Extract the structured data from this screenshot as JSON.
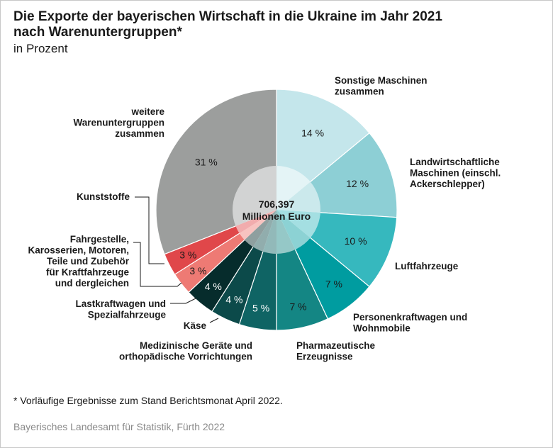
{
  "title_line1": "Die Exporte der bayerischen Wirtschaft in die Ukraine im Jahr 2021",
  "title_line2": "nach Warenuntergruppen*",
  "subtitle": "in Prozent",
  "center_value": "706,397",
  "center_unit": "Millionen Euro",
  "footnote": "* Vorläufige Ergebnisse zum Stand Berichtsmonat April 2022.",
  "source": "Bayerisches Landesamt für Statistik, Fürth 2022",
  "chart_data": {
    "type": "pie",
    "donut_center_total": "706,397 Millionen Euro",
    "unit": "%",
    "slices": [
      {
        "label": [
          "Sonstige Maschinen",
          "zusammen"
        ],
        "value": 14,
        "value_label": "14 %",
        "color": "#c4e6eb"
      },
      {
        "label": [
          "Landwirtschaftliche",
          "Maschinen (einschl.",
          "Ackerschlepper)"
        ],
        "value": 12,
        "value_label": "12 %",
        "color": "#8dcfd5"
      },
      {
        "label": [
          "Luftfahrzeuge"
        ],
        "value": 10,
        "value_label": "10 %",
        "color": "#36b8be"
      },
      {
        "label": [
          "Personenkraftwagen und",
          "Wohnmobile"
        ],
        "value": 7,
        "value_label": "7 %",
        "color": "#009ca0"
      },
      {
        "label": [
          "Pharmazeutische",
          "Erzeugnisse"
        ],
        "value": 7,
        "value_label": "7 %",
        "color": "#148684"
      },
      {
        "label": [
          "Medizinische Geräte und",
          "orthopädische Vorrichtungen"
        ],
        "value": 5,
        "value_label": "5 %",
        "color": "#0f6464"
      },
      {
        "label": [
          "Käse"
        ],
        "value": 4,
        "value_label": "4 %",
        "color": "#0c4a4a"
      },
      {
        "label": [
          "Lastkraftwagen und",
          "Spezialfahrzeuge"
        ],
        "value": 4,
        "value_label": "4 %",
        "color": "#062c2c"
      },
      {
        "label": [
          "Fahrgestelle,",
          "Karosserien, Motoren,",
          "Teile und Zubehör",
          "für Kraftfahrzeuge",
          "und dergleichen"
        ],
        "value": 3,
        "value_label": "3 %",
        "color": "#ee7a74"
      },
      {
        "label": [
          "Kunststoffe"
        ],
        "value": 3,
        "value_label": "3 %",
        "color": "#e0474a"
      },
      {
        "label": [
          "weitere",
          "Warenuntergruppen",
          "zusammen"
        ],
        "value": 31,
        "value_label": "31 %",
        "color": "#9c9e9d"
      }
    ]
  }
}
